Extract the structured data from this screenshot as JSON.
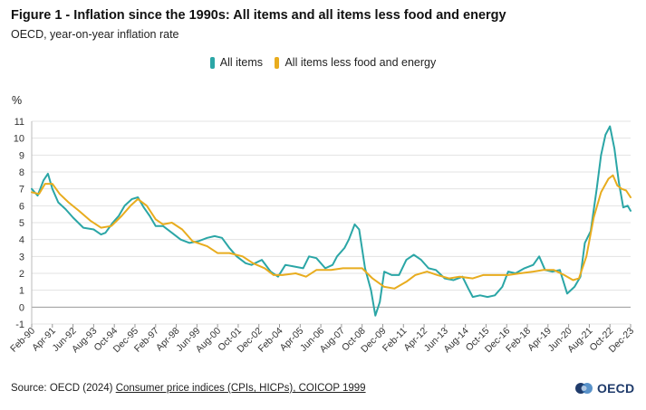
{
  "title": "Figure 1 - Inflation since the 1990s: All items and all items less food and energy",
  "subtitle": "OECD, year-on-year inflation rate",
  "source": {
    "prefix": "Source: OECD (2024) ",
    "link_text": "Consumer price indices (CPIs, HICPs), COICOP 1999"
  },
  "logo_text": "OECD",
  "colors": {
    "all_items": "#2ba6a6",
    "core": "#e8ac1e",
    "grid": "#e3e3e3",
    "zero_line": "#999999"
  },
  "chart_data": {
    "type": "line",
    "ylabel": "%",
    "ylim": [
      -1,
      11
    ],
    "yticks": [
      -1,
      0,
      1,
      2,
      3,
      4,
      5,
      6,
      7,
      8,
      9,
      10,
      11
    ],
    "x_start": "1990-02",
    "x_end": "2023-12",
    "xticks": [
      "Feb-90",
      "Apr-91",
      "Jun-92",
      "Aug-93",
      "Oct-94",
      "Dec-95",
      "Feb-97",
      "Apr-98",
      "Jun-99",
      "Aug-00",
      "Oct-01",
      "Dec-02",
      "Feb-04",
      "Apr-05",
      "Jun-06",
      "Aug-07",
      "Oct-08",
      "Dec-09",
      "Feb-11",
      "Apr-12",
      "Jun-13",
      "Aug-14",
      "Oct-15",
      "Dec-16",
      "Feb-18",
      "Apr-19",
      "Jun-20",
      "Aug-21",
      "Oct-22",
      "Dec-23"
    ],
    "grid": true,
    "legend_position": "top",
    "series": [
      {
        "name": "All items",
        "color": "#2ba6a6",
        "points": [
          [
            "1990-02",
            7.0
          ],
          [
            "1990-06",
            6.6
          ],
          [
            "1990-10",
            7.5
          ],
          [
            "1991-01",
            7.9
          ],
          [
            "1991-04",
            7.0
          ],
          [
            "1991-08",
            6.2
          ],
          [
            "1992-01",
            5.8
          ],
          [
            "1992-06",
            5.3
          ],
          [
            "1993-01",
            4.7
          ],
          [
            "1993-08",
            4.6
          ],
          [
            "1994-01",
            4.3
          ],
          [
            "1994-04",
            4.4
          ],
          [
            "1994-09",
            5.0
          ],
          [
            "1995-01",
            5.4
          ],
          [
            "1995-05",
            6.0
          ],
          [
            "1995-10",
            6.4
          ],
          [
            "1996-02",
            6.5
          ],
          [
            "1996-06",
            5.9
          ],
          [
            "1996-10",
            5.4
          ],
          [
            "1997-02",
            4.8
          ],
          [
            "1997-07",
            4.8
          ],
          [
            "1998-01",
            4.4
          ],
          [
            "1998-07",
            4.0
          ],
          [
            "1999-01",
            3.8
          ],
          [
            "1999-07",
            3.9
          ],
          [
            "2000-01",
            4.1
          ],
          [
            "2000-06",
            4.2
          ],
          [
            "2000-11",
            4.1
          ],
          [
            "2001-04",
            3.5
          ],
          [
            "2001-09",
            3.0
          ],
          [
            "2002-03",
            2.6
          ],
          [
            "2002-07",
            2.5
          ],
          [
            "2003-02",
            2.8
          ],
          [
            "2003-08",
            2.1
          ],
          [
            "2004-01",
            1.8
          ],
          [
            "2004-06",
            2.5
          ],
          [
            "2004-12",
            2.4
          ],
          [
            "2005-06",
            2.3
          ],
          [
            "2005-10",
            3.0
          ],
          [
            "2006-03",
            2.9
          ],
          [
            "2006-09",
            2.3
          ],
          [
            "2007-02",
            2.5
          ],
          [
            "2007-05",
            3.0
          ],
          [
            "2007-10",
            3.5
          ],
          [
            "2008-01",
            4.0
          ],
          [
            "2008-05",
            4.9
          ],
          [
            "2008-08",
            4.6
          ],
          [
            "2008-12",
            2.3
          ],
          [
            "2009-04",
            1.0
          ],
          [
            "2009-07",
            -0.5
          ],
          [
            "2009-10",
            0.3
          ],
          [
            "2010-01",
            2.1
          ],
          [
            "2010-06",
            1.9
          ],
          [
            "2010-11",
            1.9
          ],
          [
            "2011-04",
            2.8
          ],
          [
            "2011-09",
            3.1
          ],
          [
            "2012-02",
            2.8
          ],
          [
            "2012-07",
            2.3
          ],
          [
            "2012-12",
            2.2
          ],
          [
            "2013-06",
            1.7
          ],
          [
            "2013-12",
            1.6
          ],
          [
            "2014-06",
            1.8
          ],
          [
            "2014-10",
            1.1
          ],
          [
            "2015-01",
            0.6
          ],
          [
            "2015-06",
            0.7
          ],
          [
            "2015-11",
            0.6
          ],
          [
            "2016-04",
            0.7
          ],
          [
            "2016-09",
            1.2
          ],
          [
            "2017-01",
            2.1
          ],
          [
            "2017-06",
            2.0
          ],
          [
            "2017-12",
            2.3
          ],
          [
            "2018-06",
            2.5
          ],
          [
            "2018-10",
            3.0
          ],
          [
            "2019-02",
            2.2
          ],
          [
            "2019-07",
            2.1
          ],
          [
            "2019-12",
            2.2
          ],
          [
            "2020-05",
            0.8
          ],
          [
            "2020-10",
            1.2
          ],
          [
            "2021-02",
            1.8
          ],
          [
            "2021-05",
            3.8
          ],
          [
            "2021-09",
            4.5
          ],
          [
            "2022-01",
            7.0
          ],
          [
            "2022-04",
            9.0
          ],
          [
            "2022-07",
            10.2
          ],
          [
            "2022-10",
            10.7
          ],
          [
            "2023-01",
            9.4
          ],
          [
            "2023-04",
            7.4
          ],
          [
            "2023-07",
            5.9
          ],
          [
            "2023-10",
            6.0
          ],
          [
            "2023-12",
            5.7
          ]
        ]
      },
      {
        "name": "All items less food and energy",
        "color": "#e8ac1e",
        "points": [
          [
            "1990-02",
            6.8
          ],
          [
            "1990-07",
            6.7
          ],
          [
            "1990-11",
            7.3
          ],
          [
            "1991-04",
            7.3
          ],
          [
            "1991-09",
            6.7
          ],
          [
            "1992-03",
            6.2
          ],
          [
            "1992-10",
            5.7
          ],
          [
            "1993-06",
            5.1
          ],
          [
            "1994-01",
            4.7
          ],
          [
            "1994-08",
            4.8
          ],
          [
            "1995-03",
            5.4
          ],
          [
            "1995-09",
            6.0
          ],
          [
            "1996-02",
            6.4
          ],
          [
            "1996-08",
            6.0
          ],
          [
            "1997-02",
            5.2
          ],
          [
            "1997-07",
            4.9
          ],
          [
            "1998-01",
            5.0
          ],
          [
            "1998-08",
            4.6
          ],
          [
            "1999-03",
            3.9
          ],
          [
            "2000-01",
            3.6
          ],
          [
            "2000-08",
            3.2
          ],
          [
            "2001-04",
            3.2
          ],
          [
            "2002-01",
            3.0
          ],
          [
            "2002-08",
            2.6
          ],
          [
            "2003-04",
            2.3
          ],
          [
            "2003-10",
            1.9
          ],
          [
            "2004-04",
            1.9
          ],
          [
            "2005-01",
            2.0
          ],
          [
            "2005-08",
            1.8
          ],
          [
            "2006-03",
            2.2
          ],
          [
            "2007-01",
            2.2
          ],
          [
            "2007-09",
            2.3
          ],
          [
            "2008-04",
            2.3
          ],
          [
            "2008-10",
            2.3
          ],
          [
            "2009-05",
            1.7
          ],
          [
            "2010-01",
            1.2
          ],
          [
            "2010-08",
            1.1
          ],
          [
            "2011-04",
            1.5
          ],
          [
            "2011-10",
            1.9
          ],
          [
            "2012-06",
            2.1
          ],
          [
            "2013-01",
            1.9
          ],
          [
            "2013-09",
            1.7
          ],
          [
            "2014-04",
            1.8
          ],
          [
            "2015-01",
            1.7
          ],
          [
            "2015-08",
            1.9
          ],
          [
            "2016-03",
            1.9
          ],
          [
            "2017-01",
            1.9
          ],
          [
            "2017-09",
            2.0
          ],
          [
            "2018-06",
            2.1
          ],
          [
            "2019-01",
            2.2
          ],
          [
            "2019-08",
            2.2
          ],
          [
            "2020-03",
            1.9
          ],
          [
            "2020-09",
            1.6
          ],
          [
            "2021-01",
            1.7
          ],
          [
            "2021-06",
            3.0
          ],
          [
            "2021-11",
            5.3
          ],
          [
            "2022-04",
            6.8
          ],
          [
            "2022-09",
            7.6
          ],
          [
            "2022-12",
            7.8
          ],
          [
            "2023-03",
            7.2
          ],
          [
            "2023-06",
            7.0
          ],
          [
            "2023-09",
            6.9
          ],
          [
            "2023-12",
            6.5
          ]
        ]
      }
    ]
  }
}
